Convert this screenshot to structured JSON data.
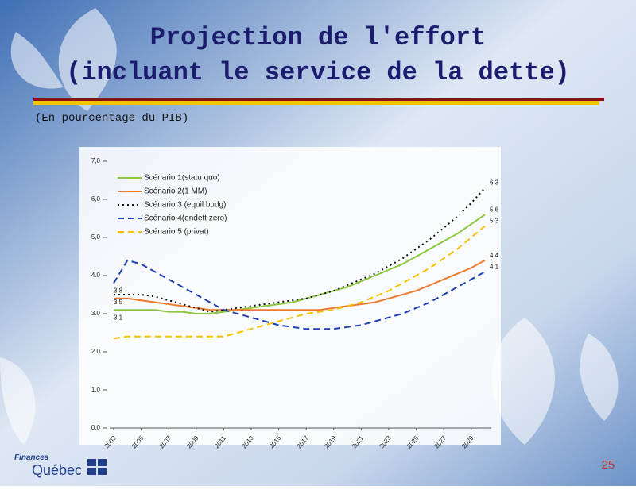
{
  "slide": {
    "title_lines": [
      "Projection de l'effort",
      "(incluant le service de la dette)"
    ],
    "subtitle": "(En pourcentage du PIB)",
    "page_number": "25",
    "logo": {
      "top": "Finances",
      "bottom": "Québec"
    }
  },
  "chart_data": {
    "type": "line",
    "x": [
      2003,
      2004,
      2005,
      2006,
      2007,
      2008,
      2009,
      2010,
      2011,
      2012,
      2013,
      2014,
      2015,
      2016,
      2017,
      2018,
      2019,
      2020,
      2021,
      2022,
      2023,
      2024,
      2025,
      2026,
      2027,
      2028,
      2029,
      2030
    ],
    "xlim": [
      2003,
      2030
    ],
    "xticks": [
      2003,
      2005,
      2007,
      2009,
      2011,
      2013,
      2015,
      2017,
      2019,
      2021,
      2023,
      2025,
      2027,
      2029
    ],
    "ylim": [
      0,
      7
    ],
    "yticks": [
      {
        "value": 0,
        "label": "0.0"
      },
      {
        "value": 1,
        "label": "1.0"
      },
      {
        "value": 2,
        "label": "2.0"
      },
      {
        "value": 3,
        "label": "3.0"
      },
      {
        "value": 4,
        "label": "4.0"
      },
      {
        "value": 5,
        "label": "5,0"
      },
      {
        "value": 6,
        "label": "6,0"
      },
      {
        "value": 7,
        "label": "7,0"
      }
    ],
    "legend": "top-left",
    "series": [
      {
        "name": "Scénario 1(statu quo)",
        "color": "#8cc63f",
        "dash": "solid",
        "values": [
          3.1,
          3.1,
          3.1,
          3.1,
          3.05,
          3.05,
          3.0,
          3.0,
          3.05,
          3.1,
          3.15,
          3.2,
          3.25,
          3.3,
          3.4,
          3.5,
          3.6,
          3.7,
          3.85,
          4.0,
          4.15,
          4.3,
          4.5,
          4.7,
          4.9,
          5.1,
          5.35,
          5.6
        ],
        "value_labels": [
          "3,1",
          null,
          null,
          null,
          null,
          null,
          null,
          null,
          null,
          null,
          null,
          null,
          null,
          null,
          null,
          null,
          null,
          null,
          null,
          null,
          null,
          null,
          null,
          null,
          null,
          null,
          null,
          "5,6"
        ]
      },
      {
        "name": "Scénario 2(1 MM)",
        "color": "#ee7a2e",
        "dash": "solid",
        "values": [
          3.4,
          3.4,
          3.35,
          3.3,
          3.25,
          3.2,
          3.15,
          3.1,
          3.1,
          3.1,
          3.1,
          3.1,
          3.1,
          3.1,
          3.1,
          3.1,
          3.15,
          3.2,
          3.25,
          3.3,
          3.4,
          3.5,
          3.6,
          3.75,
          3.9,
          4.05,
          4.2,
          4.4
        ],
        "value_labels": [
          null,
          null,
          null,
          null,
          null,
          null,
          null,
          null,
          null,
          null,
          null,
          null,
          null,
          null,
          null,
          null,
          null,
          null,
          null,
          null,
          null,
          null,
          null,
          null,
          null,
          null,
          null,
          "4,4"
        ]
      },
      {
        "name": "Scénario 3 (equil budg)",
        "color": "#111111",
        "dash": "dotted",
        "values": [
          3.5,
          3.5,
          3.5,
          3.45,
          3.35,
          3.25,
          3.15,
          3.05,
          3.1,
          3.15,
          3.2,
          3.25,
          3.3,
          3.35,
          3.4,
          3.5,
          3.6,
          3.75,
          3.9,
          4.05,
          4.25,
          4.45,
          4.7,
          4.95,
          5.25,
          5.55,
          5.9,
          6.3
        ],
        "value_labels": [
          "3,5",
          null,
          null,
          null,
          null,
          null,
          null,
          null,
          null,
          null,
          null,
          null,
          null,
          null,
          null,
          null,
          null,
          null,
          null,
          null,
          null,
          null,
          null,
          null,
          null,
          null,
          null,
          "6,3"
        ]
      },
      {
        "name": "Scénario 4(endett zero)",
        "color": "#1f3fb0",
        "dash": "dashed",
        "values": [
          3.8,
          4.4,
          4.3,
          4.1,
          3.9,
          3.7,
          3.5,
          3.3,
          3.1,
          3.0,
          2.9,
          2.8,
          2.7,
          2.65,
          2.6,
          2.6,
          2.6,
          2.65,
          2.7,
          2.8,
          2.9,
          3.0,
          3.15,
          3.3,
          3.5,
          3.7,
          3.9,
          4.1
        ],
        "value_labels": [
          "3,8",
          null,
          null,
          null,
          null,
          null,
          null,
          null,
          null,
          null,
          null,
          null,
          null,
          null,
          null,
          null,
          null,
          null,
          null,
          null,
          null,
          null,
          null,
          null,
          null,
          null,
          null,
          "4,1"
        ]
      },
      {
        "name": "Scénario 5 (privat)",
        "color": "#f5c400",
        "dash": "dashed",
        "values": [
          2.35,
          2.4,
          2.4,
          2.4,
          2.4,
          2.4,
          2.4,
          2.4,
          2.4,
          2.5,
          2.6,
          2.7,
          2.8,
          2.9,
          3.0,
          3.05,
          3.1,
          3.2,
          3.3,
          3.45,
          3.6,
          3.8,
          4.0,
          4.2,
          4.45,
          4.7,
          5.0,
          5.3
        ],
        "value_labels": [
          null,
          null,
          null,
          null,
          null,
          null,
          null,
          null,
          null,
          null,
          null,
          null,
          null,
          null,
          null,
          null,
          null,
          null,
          null,
          null,
          null,
          null,
          null,
          null,
          null,
          null,
          null,
          "5,3"
        ]
      }
    ]
  }
}
